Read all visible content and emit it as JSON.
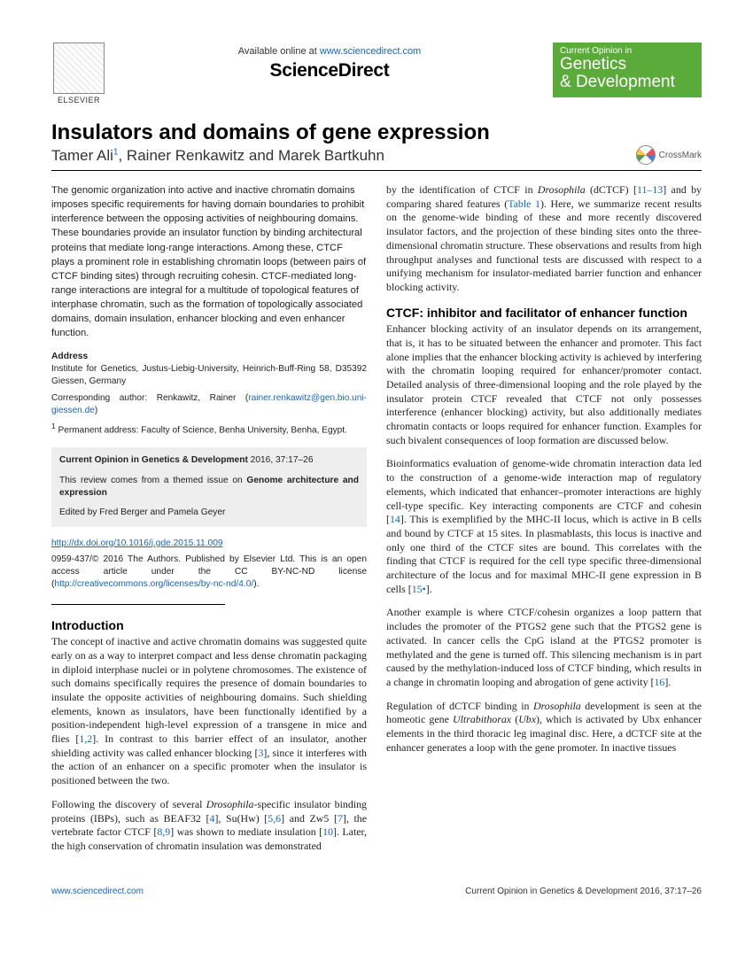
{
  "header": {
    "available_prefix": "Available online at ",
    "available_url": "www.sciencedirect.com",
    "brand": "ScienceDirect",
    "publisher": "ELSEVIER",
    "journal_line1": "Current Opinion in",
    "journal_line2a": "Genetics",
    "journal_line2b": "Development"
  },
  "article": {
    "title": "Insulators and domains of gene expression",
    "authors_html": "Tamer Ali",
    "author_sup": "1",
    "authors_rest": ", Rainer Renkawitz and Marek Bartkuhn",
    "crossmark": "CrossMark"
  },
  "abstract": "The genomic organization into active and inactive chromatin domains imposes specific requirements for having domain boundaries to prohibit interference between the opposing activities of neighbouring domains. These boundaries provide an insulator function by binding architectural proteins that mediate long-range interactions. Among these, CTCF plays a prominent role in establishing chromatin loops (between pairs of CTCF binding sites) through recruiting cohesin. CTCF-mediated long-range interactions are integral for a multitude of topological features of interphase chromatin, such as the formation of topologically associated domains, domain insulation, enhancer blocking and even enhancer function.",
  "address": {
    "heading": "Address",
    "text": "Institute for Genetics, Justus-Liebig-University, Heinrich-Buff-Ring 58, D35392 Giessen, Germany",
    "corresponding_label": "Corresponding author: Renkawitz, Rainer (",
    "corresponding_email": "rainer.renkawitz@gen.bio.uni-giessen.de",
    "footnote_label": "1",
    "footnote_text": " Permanent address: Faculty of Science, Benha University, Benha, Egypt."
  },
  "graybox": {
    "citation_journal": "Current Opinion in Genetics & Development",
    "citation_rest": " 2016, 37:17–26",
    "review_prefix": "This review comes from a themed issue on ",
    "review_theme": "Genome architecture and expression",
    "edited_by": "Edited by Fred Berger and Pamela Geyer"
  },
  "doi": {
    "url": "http://dx.doi.org/10.1016/j.gde.2015.11.009",
    "issn_line": "0959-437/© 2016 The Authors. Published by Elsevier Ltd. This is an open access article under the CC BY-NC-ND license (",
    "cc_url": "http://creativecommons.org/licenses/by-nc-nd/4.0/",
    "close": ")."
  },
  "sections": {
    "intro_heading": "Introduction",
    "ctcf_heading": "CTCF: inhibitor and facilitator of enhancer function"
  },
  "left_body": {
    "p1a": "The concept of inactive and active chromatin domains was suggested quite early on as a way to interpret compact and less dense chromatin packaging in diploid interphase nuclei or in polytene chromosomes. The existence of such domains specifically requires the presence of domain boundaries to insulate the opposite activities of neighbouring domains. Such shielding elements, known as insulators, have been functionally identified by a position-independent high-level expression of a transgene in mice and flies [",
    "p1ref1": "1,2",
    "p1b": "]. In contrast to this barrier effect of an insulator, another shielding activity was called enhancer blocking [",
    "p1ref2": "3",
    "p1c": "], since it interferes with the action of an enhancer on a specific promoter when the insulator is positioned between the two.",
    "p2a": "Following the discovery of several ",
    "p2ital": "Drosophila",
    "p2b": "-specific insulator binding proteins (IBPs), such as BEAF32 [",
    "p2ref1": "4",
    "p2c": "], Su(Hw) [",
    "p2ref2": "5,6",
    "p2d": "] and Zw5 [",
    "p2ref3": "7",
    "p2e": "], the vertebrate factor CTCF [",
    "p2ref4": "8,9",
    "p2f": "] was shown to mediate insulation [",
    "p2ref5": "10",
    "p2g": "]. Later, the high conservation of chromatin insulation was demonstrated"
  },
  "right_body": {
    "p0a": "by the identification of CTCF in ",
    "p0ital": "Drosophila",
    "p0b": " (dCTCF) [",
    "p0ref1": "11–13",
    "p0c": "] and by comparing shared features (",
    "p0ref2": "Table 1",
    "p0d": "). Here, we summarize recent results on the genome-wide binding of these and more recently discovered insulator factors, and the projection of these binding sites onto the three-dimensional chromatin structure. These observations and results from high throughput analyses and functional tests are discussed with respect to a unifying mechanism for insulator-mediated barrier function and enhancer blocking activity.",
    "p1": "Enhancer blocking activity of an insulator depends on its arrangement, that is, it has to be situated between the enhancer and promoter. This fact alone implies that the enhancer blocking activity is achieved by interfering with the chromatin looping required for enhancer/promoter contact. Detailed analysis of three-dimensional looping and the role played by the insulator protein CTCF revealed that CTCF not only possesses interference (enhancer blocking) activity, but also additionally mediates chromatin contacts or loops required for enhancer function. Examples for such bivalent consequences of loop formation are discussed below.",
    "p2a": "Bioinformatics evaluation of genome-wide chromatin interaction data led to the construction of a genome-wide interaction map of regulatory elements, which indicated that enhancer–promoter interactions are highly cell-type specific. Key interacting components are CTCF and cohesin [",
    "p2ref1": "14",
    "p2b": "]. This is exemplified by the MHC-II locus, which is active in B cells and bound by CTCF at 15 sites. In plasmablasts, this locus is inactive and only one third of the CTCF sites are bound. This correlates with the finding that CTCF is required for the cell type specific three-dimensional architecture of the locus and for maximal MHC-II gene expression in B cells [",
    "p2ref2": "15•",
    "p2c": "].",
    "p3a": "Another example is where CTCF/cohesin organizes a loop pattern that includes the promoter of the PTGS2 gene such that the PTGS2 gene is activated. In cancer cells the CpG island at the PTGS2 promoter is methylated and the gene is turned off. This silencing mechanism is in part caused by the methylation-induced loss of CTCF binding, which results in a change in chromatin looping and abrogation of gene activity [",
    "p3ref1": "16",
    "p3b": "].",
    "p4a": "Regulation of dCTCF binding in ",
    "p4ital1": "Drosophila",
    "p4b": " development is seen at the homeotic gene ",
    "p4ital2": "Ultrabithorax",
    "p4c": " (",
    "p4ital3": "Ubx",
    "p4d": "), which is activated by Ubx enhancer elements in the third thoracic leg imaginal disc. Here, a dCTCF site at the enhancer generates a loop with the gene promoter. In inactive tissues"
  },
  "footer": {
    "left_url": "www.sciencedirect.com",
    "right": "Current Opinion in Genetics & Development 2016, 37:17–26"
  }
}
